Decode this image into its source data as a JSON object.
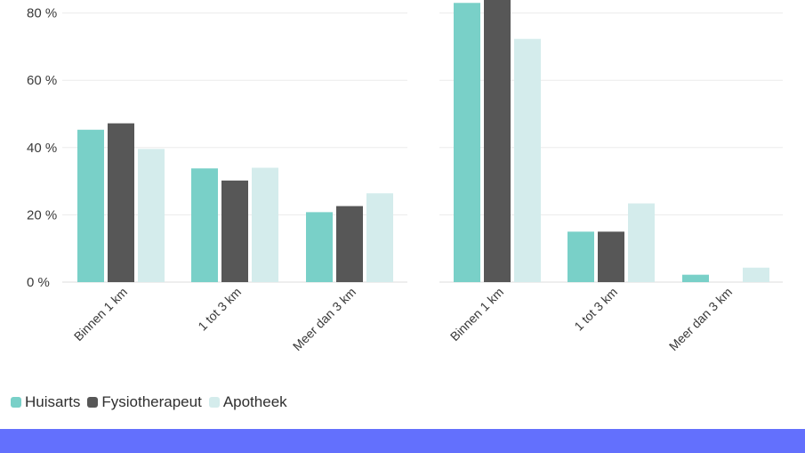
{
  "chart_data": [
    {
      "type": "bar",
      "categories": [
        "Binnen 1 km",
        "1 tot 3 km",
        "Meer dan 3 km"
      ],
      "series": [
        {
          "name": "Huisarts",
          "values": [
            45.3,
            33.8,
            20.8
          ]
        },
        {
          "name": "Fysiotherapeut",
          "values": [
            47.2,
            30.2,
            22.6
          ]
        },
        {
          "name": "Apotheek",
          "values": [
            39.6,
            34.0,
            26.4
          ]
        }
      ],
      "yticks": [
        "0 %",
        "20 %",
        "40 %",
        "60 %",
        "80 %"
      ],
      "ylim": [
        0,
        85
      ],
      "grid": true
    },
    {
      "type": "bar",
      "categories": [
        "Binnen 1 km",
        "1 tot 3 km",
        "Meer dan 3 km"
      ],
      "series": [
        {
          "name": "Huisarts",
          "values": [
            83.0,
            15.0,
            2.2
          ]
        },
        {
          "name": "Fysiotherapeut",
          "values": [
            85.0,
            15.0,
            0
          ]
        },
        {
          "name": "Apotheek",
          "values": [
            72.3,
            23.4,
            4.3
          ]
        }
      ],
      "ylim": [
        0,
        85
      ],
      "grid": true
    }
  ],
  "legend": [
    {
      "label": "Huisarts",
      "color": "#79d0c8"
    },
    {
      "label": "Fysiotherapeut",
      "color": "#575757"
    },
    {
      "label": "Apotheek",
      "color": "#d4ecec"
    }
  ]
}
